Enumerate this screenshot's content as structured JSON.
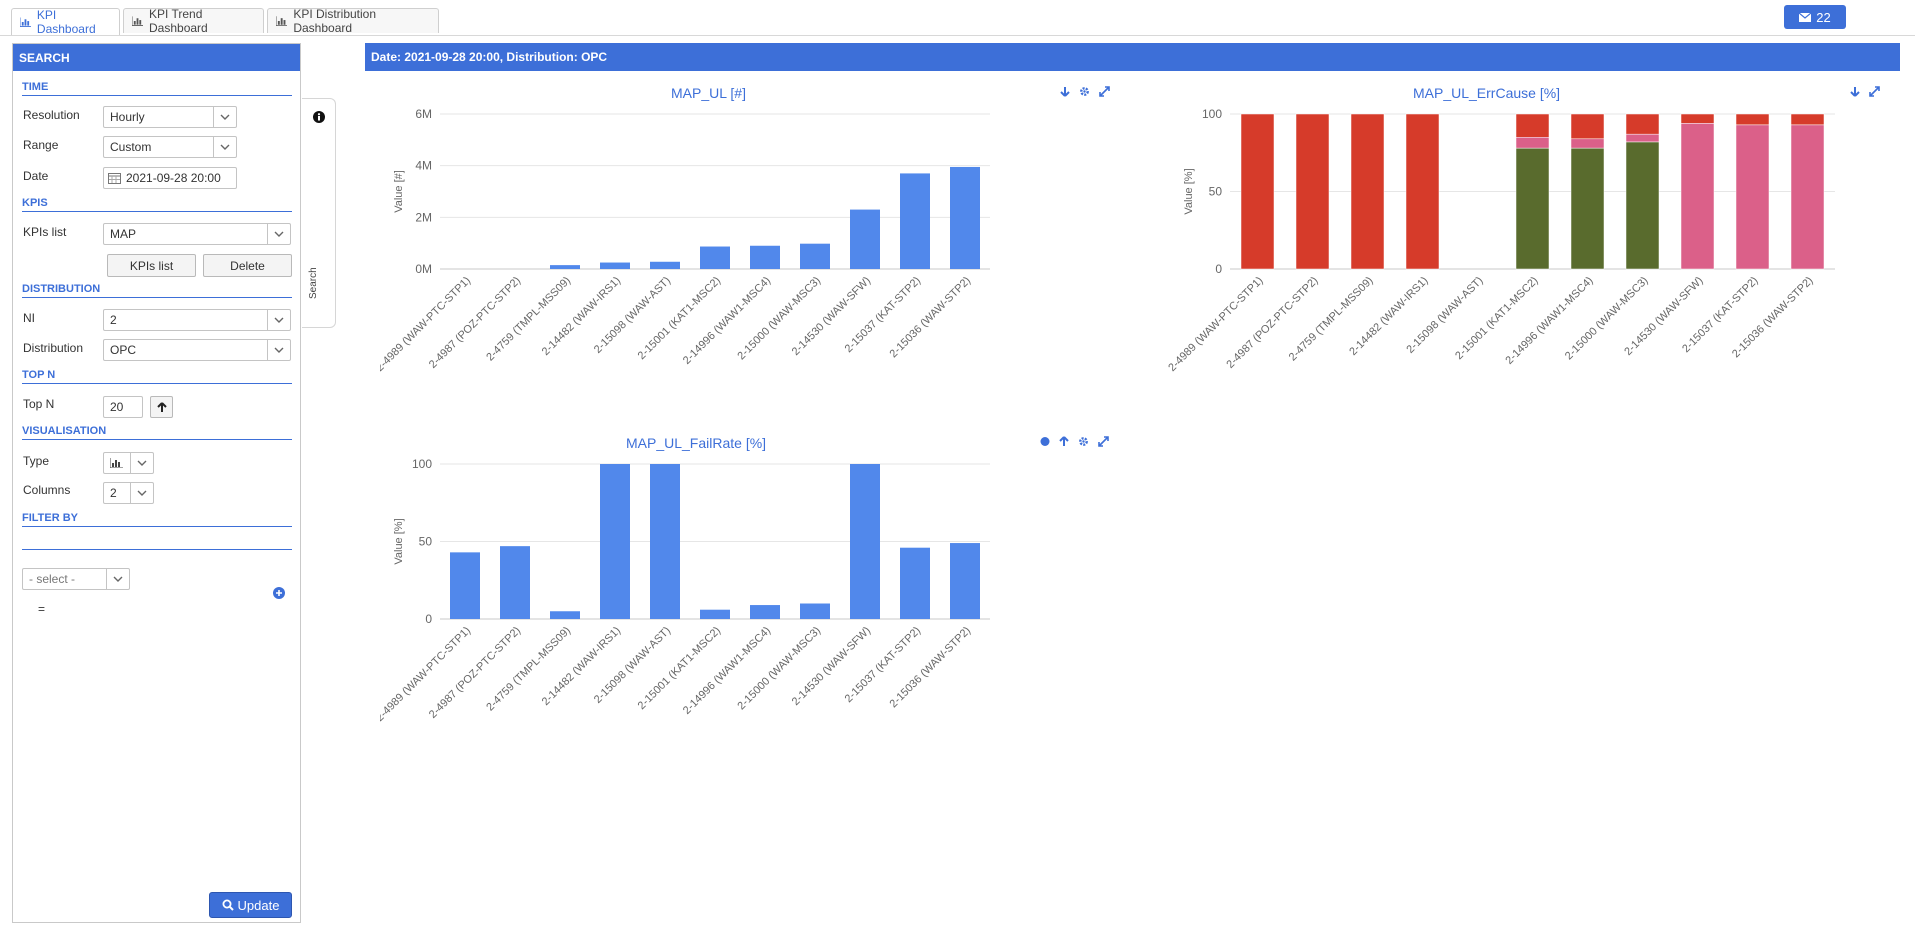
{
  "tabs": [
    {
      "label": "KPI Dashboard"
    },
    {
      "label": "KPI Trend Dashboard"
    },
    {
      "label": "KPI Distribution Dashboard"
    }
  ],
  "messages": {
    "count": "22"
  },
  "sidebar": {
    "title": "SEARCH",
    "sections": {
      "time": "TIME",
      "kpis": "KPIS",
      "distribution": "DISTRIBUTION",
      "topn": "TOP N",
      "visualisation": "VISUALISATION",
      "filter": "FILTER BY"
    },
    "resolution": {
      "label": "Resolution",
      "value": "Hourly"
    },
    "range": {
      "label": "Range",
      "value": "Custom"
    },
    "date": {
      "label": "Date",
      "value": "2021-09-28 20:00"
    },
    "kpis_list": {
      "label": "KPIs list",
      "value": "MAP"
    },
    "kpis_list_button": "KPIs list",
    "delete_button": "Delete",
    "ni": {
      "label": "NI",
      "value": "2"
    },
    "distribution": {
      "label": "Distribution",
      "value": "OPC"
    },
    "topn": {
      "label": "Top N",
      "value": "20"
    },
    "type": {
      "label": "Type"
    },
    "columns": {
      "label": "Columns",
      "value": "2"
    },
    "filter_select": "- select -",
    "filter_eq": "=",
    "update_button": "Update",
    "search_tab": "Search"
  },
  "header": {
    "text": "Date: 2021-09-28 20:00, Distribution: OPC"
  },
  "colors": {
    "accent": "#3d6fd8",
    "bar": "#5188eb",
    "red": "#d63b2a",
    "green": "#596b2d",
    "pink": "#db6089"
  },
  "chart_data": [
    {
      "type": "bar",
      "title": "MAP_UL [#]",
      "ylabel": "Value [#]",
      "ylim": [
        0,
        6000000
      ],
      "yticks": [
        "0M",
        "2M",
        "4M",
        "6M"
      ],
      "categories": [
        "2-4989 (WAW-PTC-STP1)",
        "2-4987 (POZ-PTC-STP2)",
        "2-4759 (TMPL-MSS09)",
        "2-14482 (WAW-IRS1)",
        "2-15098 (WAW-AST)",
        "2-15001 (KAT1-MSC2)",
        "2-14996 (WAW1-MSC4)",
        "2-15000 (WAW-MSC3)",
        "2-14530 (WAW-SFW)",
        "2-15037 (KAT-STP2)",
        "2-15036 (WAW-STP2)"
      ],
      "values": [
        0,
        0,
        150000,
        250000,
        280000,
        870000,
        900000,
        980000,
        2300000,
        3700000,
        3950000
      ]
    },
    {
      "type": "bar",
      "stacked": true,
      "title": "MAP_UL_ErrCause [%]",
      "ylabel": "Value [%]",
      "ylim": [
        0,
        100
      ],
      "yticks": [
        "0",
        "50",
        "100"
      ],
      "categories": [
        "2-4989 (WAW-PTC-STP1)",
        "2-4987 (POZ-PTC-STP2)",
        "2-4759 (TMPL-MSS09)",
        "2-14482 (WAW-IRS1)",
        "2-15098 (WAW-AST)",
        "2-15001 (KAT1-MSC2)",
        "2-14996 (WAW1-MSC4)",
        "2-15000 (WAW-MSC3)",
        "2-14530 (WAW-SFW)",
        "2-15037 (KAT-STP2)",
        "2-15036 (WAW-STP2)"
      ],
      "series": [
        {
          "color": "#596b2d",
          "values": [
            0,
            0,
            0,
            0,
            0,
            78,
            78,
            82,
            0,
            0,
            0
          ]
        },
        {
          "color": "#db6089",
          "values": [
            0,
            0,
            0,
            0,
            0,
            7,
            6,
            5,
            94,
            93,
            93
          ]
        },
        {
          "color": "#d63b2a",
          "values": [
            100,
            100,
            100,
            100,
            0,
            15,
            16,
            13,
            6,
            7,
            7
          ]
        }
      ]
    },
    {
      "type": "bar",
      "title": "MAP_UL_FailRate [%]",
      "ylabel": "Value [%]",
      "ylim": [
        0,
        100
      ],
      "yticks": [
        "0",
        "50",
        "100"
      ],
      "categories": [
        "2-4989 (WAW-PTC-STP1)",
        "2-4987 (POZ-PTC-STP2)",
        "2-4759 (TMPL-MSS09)",
        "2-14482 (WAW-IRS1)",
        "2-15098 (WAW-AST)",
        "2-15001 (KAT1-MSC2)",
        "2-14996 (WAW1-MSC4)",
        "2-15000 (WAW-MSC3)",
        "2-14530 (WAW-SFW)",
        "2-15037 (KAT-STP2)",
        "2-15036 (WAW-STP2)"
      ],
      "values": [
        43,
        47,
        5,
        100,
        100,
        6,
        9,
        10,
        100,
        46,
        49
      ]
    }
  ]
}
